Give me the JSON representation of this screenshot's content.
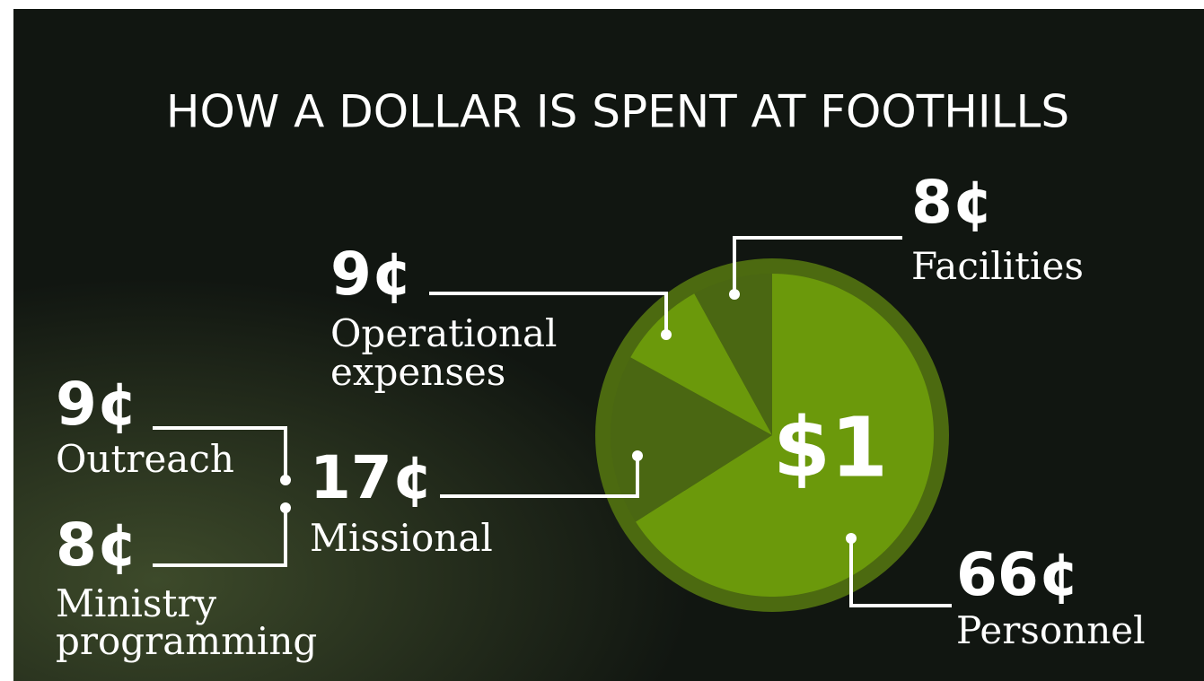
{
  "chart_data": {
    "type": "pie",
    "title": "HOW A DOLLAR IS SPENT AT FOOTHILLS",
    "center_label": "$1",
    "categories": [
      "Personnel",
      "Missional",
      "Operational expenses",
      "Facilities"
    ],
    "values": [
      66,
      17,
      9,
      8
    ],
    "value_labels": [
      "66¢",
      "17¢",
      "9¢",
      "8¢"
    ],
    "colors": [
      "#6b990b",
      "#4a6712",
      "#6b990b",
      "#4a6712"
    ],
    "ring_color": "#4c6a10",
    "breakdown": {
      "of": "Missional",
      "categories": [
        "Outreach",
        "Ministry programming"
      ],
      "values": [
        9,
        8
      ],
      "value_labels": [
        "9¢",
        "8¢"
      ]
    }
  }
}
